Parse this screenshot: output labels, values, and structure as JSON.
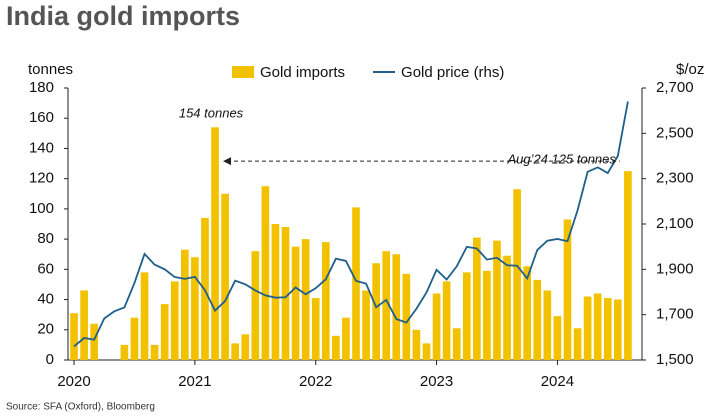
{
  "chart_data": {
    "type": "bar",
    "title": "India gold imports",
    "y_label": "tonnes",
    "y2_label": "$/oz",
    "source": "Source: SFA (Oxford), Bloomberg",
    "categories": [
      "2020",
      null,
      null,
      null,
      null,
      null,
      null,
      null,
      null,
      null,
      null,
      null,
      "2021",
      null,
      null,
      null,
      null,
      null,
      null,
      null,
      null,
      null,
      null,
      null,
      "2022",
      null,
      null,
      null,
      null,
      null,
      null,
      null,
      null,
      null,
      null,
      null,
      "2023",
      null,
      null,
      null,
      null,
      null,
      null,
      null,
      null,
      null,
      null,
      null,
      "2024",
      null,
      null,
      null,
      null,
      null,
      null,
      null
    ],
    "series": [
      {
        "name": "Gold imports",
        "color": "#f2c200",
        "values": [
          31,
          46,
          24,
          0,
          0,
          10,
          28,
          58,
          10,
          37,
          52,
          73,
          68,
          94,
          154,
          110,
          11,
          17,
          72,
          115,
          90,
          88,
          75,
          80,
          41,
          78,
          16,
          28,
          101,
          46,
          64,
          72,
          70,
          57,
          20,
          11,
          44,
          52,
          21,
          58,
          81,
          59,
          79,
          69,
          113,
          62,
          53,
          46,
          29,
          93,
          21,
          42,
          44,
          41,
          40,
          125
        ]
      },
      {
        "name": "Gold price (rhs)",
        "type": "line",
        "axis": "y2",
        "color": "#1f5f8b",
        "values": [
          1560,
          1597,
          1590,
          1683,
          1715,
          1732,
          1840,
          1968,
          1921,
          1900,
          1866,
          1858,
          1867,
          1808,
          1718,
          1760,
          1850,
          1834,
          1807,
          1785,
          1775,
          1777,
          1820,
          1790,
          1817,
          1856,
          1947,
          1937,
          1849,
          1837,
          1733,
          1765,
          1681,
          1665,
          1726,
          1798,
          1898,
          1855,
          1913,
          1999,
          1992,
          1943,
          1951,
          1918,
          1916,
          1860,
          1985,
          2026,
          2034,
          2024,
          2160,
          2330,
          2350,
          2325,
          2400,
          2640
        ]
      }
    ],
    "ylim": [
      0,
      180
    ],
    "yticks": [
      0,
      20,
      40,
      60,
      80,
      100,
      120,
      140,
      160,
      180
    ],
    "y2lim": [
      1500,
      2700
    ],
    "y2ticks": [
      {
        "value": 1500,
        "label": "1,500"
      },
      {
        "value": 1700,
        "label": "1,700"
      },
      {
        "value": 1900,
        "label": "1,900"
      },
      {
        "value": 2100,
        "label": "2,100"
      },
      {
        "value": 2300,
        "label": "2,300"
      },
      {
        "value": 2500,
        "label": "2,500"
      },
      {
        "value": 2700,
        "label": "2,700"
      }
    ],
    "annotations": [
      {
        "text": "154 tonnes"
      },
      {
        "text": "Aug’24 125 tonnes"
      }
    ],
    "legend": "top"
  }
}
